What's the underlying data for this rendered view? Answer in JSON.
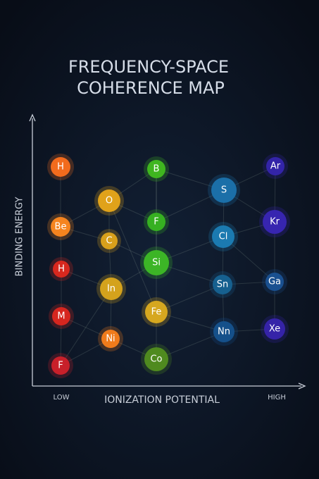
{
  "title": {
    "lines": [
      "FREQUENCY-SPACE",
      "COHERENCE MAP"
    ]
  },
  "axes": {
    "y_label": "BINDING ENERGY",
    "x_label": "IONIZATION POTENTIAL",
    "x_low": "LOW",
    "x_high": "HIGH"
  },
  "nodes": [
    {
      "label": "H"
    },
    {
      "label": "Be"
    },
    {
      "label": "H"
    },
    {
      "label": "M"
    },
    {
      "label": "F"
    },
    {
      "label": "O"
    },
    {
      "label": "C"
    },
    {
      "label": "In"
    },
    {
      "label": "Ni"
    },
    {
      "label": "B"
    },
    {
      "label": "F"
    },
    {
      "label": "Si"
    },
    {
      "label": "Fe"
    },
    {
      "label": "Co"
    },
    {
      "label": "S"
    },
    {
      "label": "Cl"
    },
    {
      "label": "Sn"
    },
    {
      "label": "Nn"
    },
    {
      "label": "Ar"
    },
    {
      "label": "Kr"
    },
    {
      "label": "Ga"
    },
    {
      "label": "Xe"
    }
  ]
}
